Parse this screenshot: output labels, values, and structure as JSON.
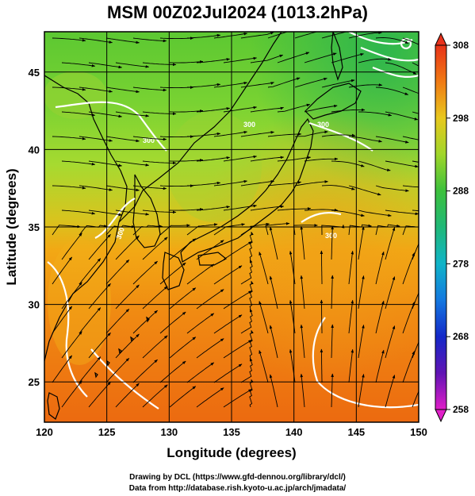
{
  "title": "MSM 00Z02Jul2024 (1013.2hPa)",
  "axes": {
    "xlabel": "Longitude (degrees)",
    "ylabel": "Latitude  (degrees)",
    "xlim": [
      120,
      150
    ],
    "ylim": [
      22.4,
      47.6
    ],
    "xticks": [
      "120",
      "125",
      "130",
      "135",
      "140",
      "145",
      "150"
    ],
    "yticks": [
      "25",
      "30",
      "35",
      "40",
      "45"
    ]
  },
  "colorbar": {
    "ticks": [
      "258",
      "268",
      "278",
      "288",
      "298",
      "308"
    ],
    "range": [
      258,
      308
    ]
  },
  "contour_labels": [
    "300",
    "300",
    "300",
    "300",
    "300"
  ],
  "credits": {
    "line1": "Drawing by DCL (https://www.gfd-dennou.org/library/dcl/)",
    "line2": "Data from http://database.rish.kyoto-u.ac.jp/arch/jmadata/"
  },
  "colors": {
    "land_outline": "#000000",
    "contour": "#ffffff",
    "streamline": "#000000",
    "grid": "#000000"
  }
}
